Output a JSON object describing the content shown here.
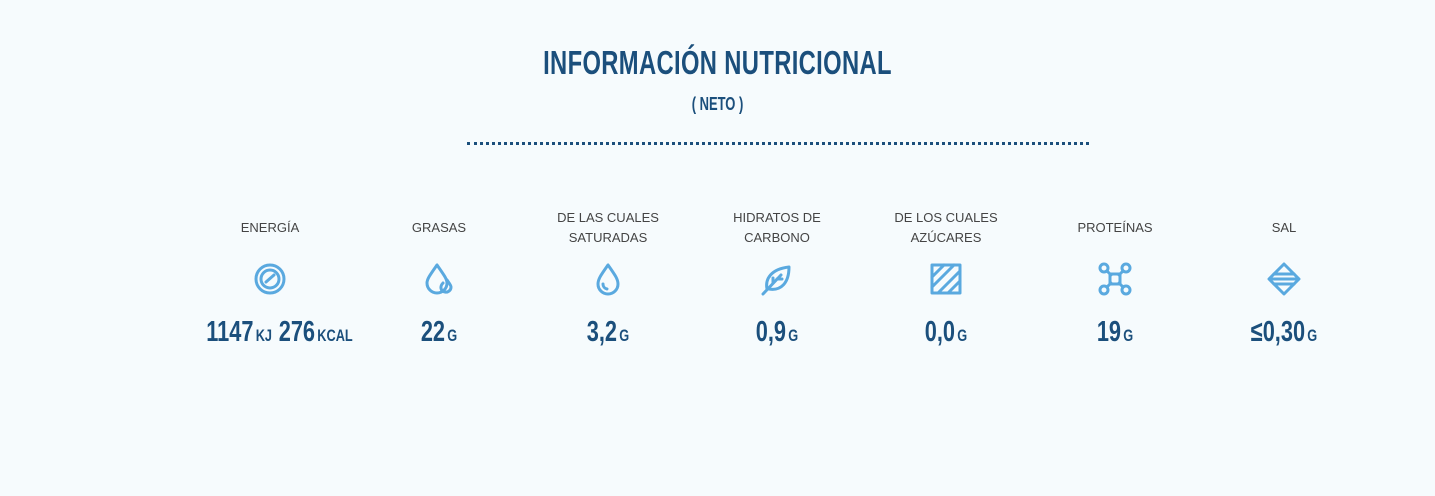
{
  "header": {
    "title": "INFORMACIÓN NUTRICIONAL",
    "subtitle": "( NETO )"
  },
  "items": [
    {
      "label": [
        "ENERGÍA"
      ],
      "values": [
        {
          "number": "1147",
          "unit": "KJ"
        },
        {
          "number": "276",
          "unit": "KCAL"
        }
      ]
    },
    {
      "label": [
        "GRASAS"
      ],
      "values": [
        {
          "number": "22",
          "unit": "G"
        }
      ]
    },
    {
      "label": [
        "DE LAS CUALES",
        "SATURADAS"
      ],
      "values": [
        {
          "number": "3,2",
          "unit": "G"
        }
      ]
    },
    {
      "label": [
        "HIDRATOS DE",
        "CARBONO"
      ],
      "values": [
        {
          "number": "0,9",
          "unit": "G"
        }
      ]
    },
    {
      "label": [
        "DE LOS CUALES",
        "AZÚCARES"
      ],
      "values": [
        {
          "number": "0,0",
          "unit": "G"
        }
      ]
    },
    {
      "label": [
        "PROTEÍNAS"
      ],
      "values": [
        {
          "number": "19",
          "unit": "G"
        }
      ]
    },
    {
      "label": [
        "SAL"
      ],
      "values": [
        {
          "number": "≤0,30",
          "unit": "G"
        }
      ]
    }
  ]
}
